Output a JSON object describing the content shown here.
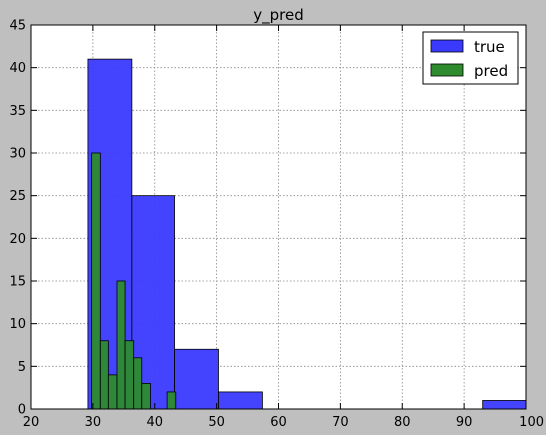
{
  "chart_data": {
    "type": "bar",
    "title": "y_pred",
    "xlabel": "",
    "ylabel": "",
    "xlim": [
      20,
      100
    ],
    "ylim": [
      0,
      45
    ],
    "xticks": [
      "20",
      "30",
      "40",
      "50",
      "60",
      "70",
      "80",
      "90",
      "100"
    ],
    "yticks": [
      "0",
      "5",
      "10",
      "15",
      "20",
      "25",
      "30",
      "35",
      "40",
      "45"
    ],
    "grid": true,
    "legend_position": "top-right",
    "series": [
      {
        "name": "true",
        "color": "#3a3aff",
        "bins": [
          {
            "x0": 29.2,
            "x1": 36.3,
            "count": 41
          },
          {
            "x0": 36.3,
            "x1": 43.2,
            "count": 25
          },
          {
            "x0": 43.2,
            "x1": 50.3,
            "count": 7
          },
          {
            "x0": 50.3,
            "x1": 57.4,
            "count": 2
          },
          {
            "x0": 93.0,
            "x1": 100.0,
            "count": 1
          }
        ]
      },
      {
        "name": "pred",
        "color": "#2e8b2e",
        "bins": [
          {
            "x0": 29.8,
            "x1": 31.2,
            "count": 30
          },
          {
            "x0": 31.2,
            "x1": 32.5,
            "count": 8
          },
          {
            "x0": 32.5,
            "x1": 33.9,
            "count": 4
          },
          {
            "x0": 33.9,
            "x1": 35.2,
            "count": 15
          },
          {
            "x0": 35.2,
            "x1": 36.6,
            "count": 8
          },
          {
            "x0": 36.6,
            "x1": 37.9,
            "count": 6
          },
          {
            "x0": 37.9,
            "x1": 39.3,
            "count": 3
          },
          {
            "x0": 39.3,
            "x1": 40.7,
            "count": 0
          },
          {
            "x0": 40.7,
            "x1": 42.0,
            "count": 0
          },
          {
            "x0": 42.0,
            "x1": 43.4,
            "count": 2
          }
        ]
      }
    ]
  }
}
